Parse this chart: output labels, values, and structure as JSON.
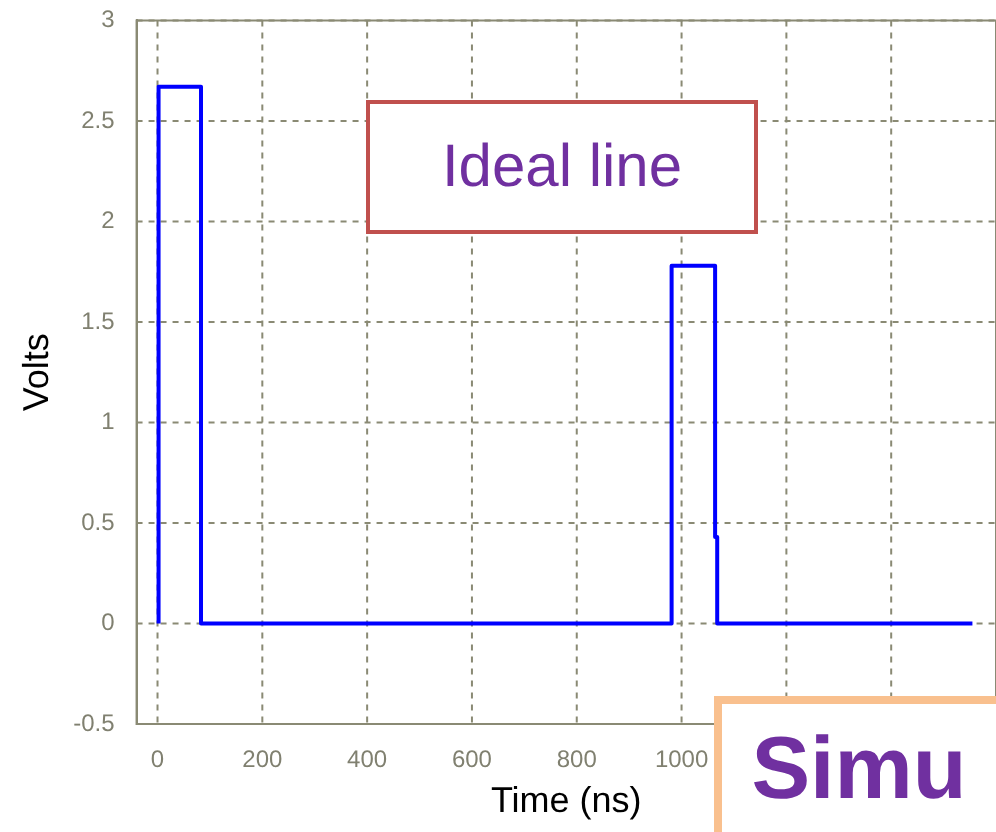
{
  "chart_data": {
    "type": "line",
    "xlabel": "Time (ns)",
    "ylabel": "Volts",
    "annotations": [
      "Ideal line",
      "Simu"
    ],
    "series": [
      {
        "color": "#0000ff",
        "x": [
          2,
          2,
          83,
          83,
          981,
          981,
          1064,
          1064,
          1068,
          1068,
          1555
        ],
        "values": [
          0,
          2.67,
          2.67,
          0,
          0,
          1.78,
          1.78,
          0.43,
          0.43,
          0,
          0
        ]
      }
    ],
    "xlim": [
      -40,
      1600
    ],
    "xticks": [
      0,
      200,
      400,
      600,
      800,
      1000,
      {
        "value": 1200,
        "label": null
      },
      {
        "value": 1400,
        "label": null
      }
    ],
    "ylim": [
      -0.5,
      3
    ],
    "yticks": [
      -0.5,
      0,
      0.5,
      1,
      1.5,
      2,
      2.5,
      3
    ],
    "grid": true,
    "legend": false,
    "marker": "none",
    "line_style": "solid"
  }
}
